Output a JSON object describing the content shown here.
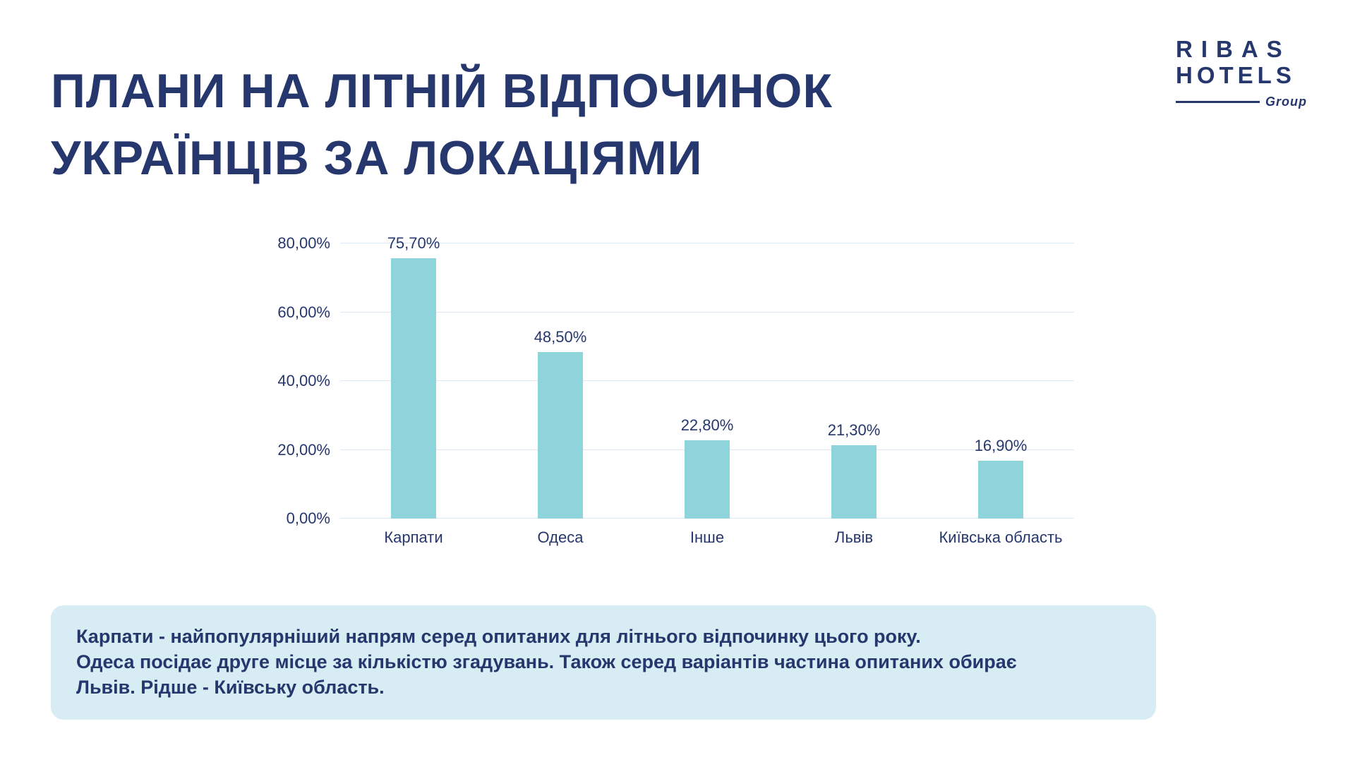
{
  "title": {
    "line1": "ПЛАНИ НА ЛІТНІЙ ВІДПОЧИНОК",
    "line2": "УКРАЇНЦІВ ЗА ЛОКАЦІЯМИ"
  },
  "logo": {
    "line1": "RIBAS",
    "line2": "HOTELS",
    "group": "Group"
  },
  "chart_data": {
    "type": "bar",
    "categories": [
      "Карпати",
      "Одеса",
      "Інше",
      "Львів",
      "Київська область"
    ],
    "values": [
      75.7,
      48.5,
      22.8,
      21.3,
      16.9
    ],
    "value_labels": [
      "75,70%",
      "48,50%",
      "22,80%",
      "21,30%",
      "16,90%"
    ],
    "y_ticks": [
      "0,00%",
      "20,00%",
      "40,00%",
      "60,00%",
      "80,00%"
    ],
    "ylim": [
      0,
      80
    ],
    "grid": true,
    "legend": "none",
    "bar_color": "#8fd4da",
    "gridline_color": "#dce8f5",
    "label_color": "#25376d",
    "title": "",
    "xlabel": "",
    "ylabel": ""
  },
  "note": {
    "lines": [
      "Карпати - найпопулярніший напрям серед опитаних для літнього відпочинку цього року.",
      "Одеса посідає друге місце за кількістю згадувань. Також серед варіантів частина опитаних обирає",
      "Львів. Рідше - Київську область."
    ]
  },
  "colors": {
    "accent_navy": "#25376d",
    "bar_teal": "#8fd4da",
    "note_background": "#d8ecf4",
    "background": "#ffffff"
  }
}
